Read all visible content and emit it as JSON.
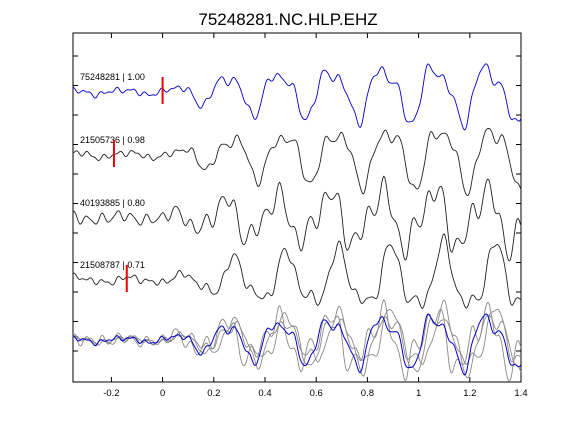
{
  "chart_data": {
    "type": "line",
    "title": "75248281.NC.HLP.EHZ",
    "xlabel": "",
    "ylabel": "",
    "xlim": [
      -0.35,
      1.4
    ],
    "x_ticks": [
      -0.2,
      0,
      0.2,
      0.4,
      0.6,
      0.8,
      1,
      1.2,
      1.4
    ],
    "x_tick_labels": [
      "-0.2",
      "0",
      "0.2",
      "0.4",
      "0.6",
      "0.8",
      "1",
      "1.2",
      "1.4"
    ],
    "grid": false,
    "colors": {
      "reference": "#0000cc",
      "trace": "#222222",
      "overlay_gray": "#888888",
      "pick": "#ee0000"
    },
    "traces": [
      {
        "label": "75248281 | 1.00",
        "event_id": "75248281",
        "correlation": 1.0,
        "pick_time": 0.0,
        "color": "#0000cc"
      },
      {
        "label": "21505736 | 0.98",
        "event_id": "21505736",
        "correlation": 0.98,
        "pick_time": -0.19,
        "color": "#222222"
      },
      {
        "label": "40193885 | 0.80",
        "event_id": "40193885",
        "correlation": 0.8,
        "pick_time": null,
        "color": "#222222"
      },
      {
        "label": "21508787 | 0.71",
        "event_id": "21508787",
        "correlation": 0.71,
        "pick_time": -0.14,
        "color": "#222222"
      }
    ],
    "stack": {
      "label": ""
    }
  }
}
